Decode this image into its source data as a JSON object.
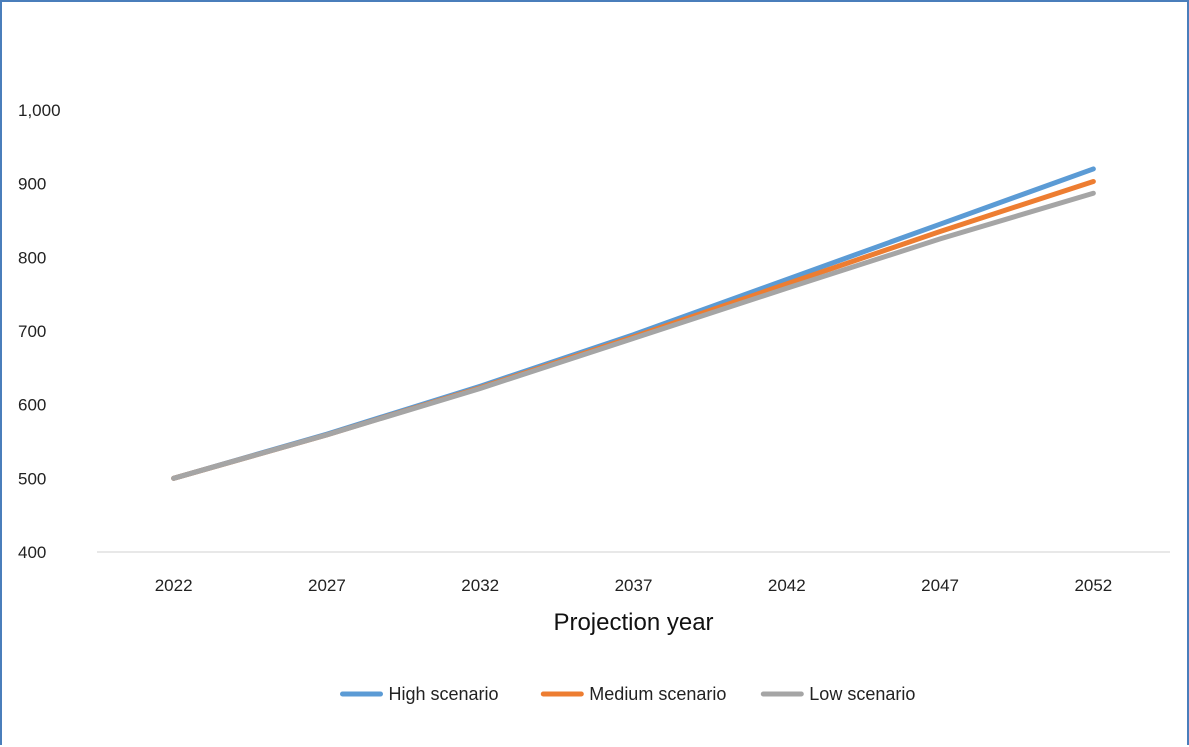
{
  "chart_data": {
    "type": "line",
    "title": "",
    "xlabel": "Projection year",
    "ylabel": "",
    "x": [
      2022,
      2027,
      2032,
      2037,
      2042,
      2047,
      2052
    ],
    "x_tick_labels": [
      "2022",
      "2027",
      "2032",
      "2037",
      "2042",
      "2047",
      "2052"
    ],
    "ylim": [
      400,
      1000
    ],
    "y_ticks": [
      400,
      500,
      600,
      700,
      800,
      900,
      1000
    ],
    "y_tick_labels": [
      "400",
      "500",
      "600",
      "700",
      "800",
      "900",
      "1,000"
    ],
    "grid": false,
    "legend_position": "bottom",
    "series": [
      {
        "name": "High scenario",
        "color": "#5b9bd5",
        "values": [
          500,
          560,
          625,
          695,
          770,
          845,
          920
        ]
      },
      {
        "name": "Medium scenario",
        "color": "#ed7d31",
        "values": [
          500,
          559,
          623,
          692,
          764,
          835,
          903
        ]
      },
      {
        "name": "Low scenario",
        "color": "#a5a5a5",
        "values": [
          500,
          559,
          622,
          690,
          758,
          825,
          887
        ]
      }
    ]
  }
}
